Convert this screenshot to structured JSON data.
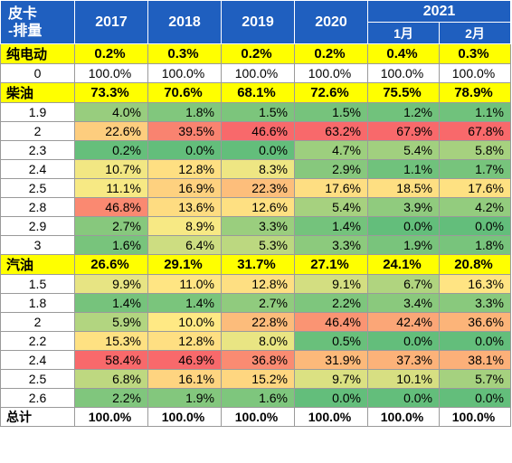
{
  "header": {
    "corner": "皮卡\n-排量",
    "years": [
      "2017",
      "2018",
      "2019",
      "2020"
    ],
    "year_2021": "2021",
    "months_2021": [
      "1月",
      "2月"
    ]
  },
  "colors": {
    "header_bg": "#1f5fbf",
    "group_bg": "#ffff00",
    "scale_low": "#63be7b",
    "scale_mid": "#ffeb84",
    "scale_high": "#f8696b"
  },
  "rows": [
    {
      "label": "纯电动",
      "type": "group",
      "values": [
        "0.2%",
        "0.3%",
        "0.2%",
        "0.2%",
        "0.4%",
        "0.3%"
      ]
    },
    {
      "label": "0",
      "type": "plain",
      "values": [
        "100.0%",
        "100.0%",
        "100.0%",
        "100.0%",
        "100.0%",
        "100.0%"
      ]
    },
    {
      "label": "柴油",
      "type": "group",
      "values": [
        "73.3%",
        "70.6%",
        "68.1%",
        "72.6%",
        "75.5%",
        "78.9%"
      ]
    },
    {
      "label": "1.9",
      "type": "data",
      "values": [
        "4.0%",
        "1.8%",
        "1.5%",
        "1.5%",
        "1.2%",
        "1.1%"
      ]
    },
    {
      "label": "2",
      "type": "data",
      "values": [
        "22.6%",
        "39.5%",
        "46.6%",
        "63.2%",
        "67.9%",
        "67.8%"
      ]
    },
    {
      "label": "2.3",
      "type": "data",
      "values": [
        "0.2%",
        "0.0%",
        "0.0%",
        "4.7%",
        "5.4%",
        "5.8%"
      ]
    },
    {
      "label": "2.4",
      "type": "data",
      "values": [
        "10.7%",
        "12.8%",
        "8.3%",
        "2.9%",
        "1.1%",
        "1.7%"
      ]
    },
    {
      "label": "2.5",
      "type": "data",
      "values": [
        "11.1%",
        "16.9%",
        "22.3%",
        "17.6%",
        "18.5%",
        "17.6%"
      ]
    },
    {
      "label": "2.8",
      "type": "data",
      "values": [
        "46.8%",
        "13.6%",
        "12.6%",
        "5.4%",
        "3.9%",
        "4.2%"
      ]
    },
    {
      "label": "2.9",
      "type": "data",
      "values": [
        "2.7%",
        "8.9%",
        "3.3%",
        "1.4%",
        "0.0%",
        "0.0%"
      ]
    },
    {
      "label": "3",
      "type": "data",
      "values": [
        "1.6%",
        "6.4%",
        "5.3%",
        "3.3%",
        "1.9%",
        "1.8%"
      ]
    },
    {
      "label": "汽油",
      "type": "group",
      "values": [
        "26.6%",
        "29.1%",
        "31.7%",
        "27.1%",
        "24.1%",
        "20.8%"
      ]
    },
    {
      "label": "1.5",
      "type": "data",
      "values": [
        "9.9%",
        "11.0%",
        "12.8%",
        "9.1%",
        "6.7%",
        "16.3%"
      ]
    },
    {
      "label": "1.8",
      "type": "data",
      "values": [
        "1.4%",
        "1.4%",
        "2.7%",
        "2.2%",
        "3.4%",
        "3.3%"
      ]
    },
    {
      "label": "2",
      "type": "data",
      "values": [
        "5.9%",
        "10.0%",
        "22.8%",
        "46.4%",
        "42.4%",
        "36.6%"
      ]
    },
    {
      "label": "2.2",
      "type": "data",
      "values": [
        "15.3%",
        "12.8%",
        "8.0%",
        "0.5%",
        "0.0%",
        "0.0%"
      ]
    },
    {
      "label": "2.4",
      "type": "data",
      "values": [
        "58.4%",
        "46.9%",
        "36.8%",
        "31.9%",
        "37.3%",
        "38.1%"
      ]
    },
    {
      "label": "2.5",
      "type": "data",
      "values": [
        "6.8%",
        "16.1%",
        "15.2%",
        "9.7%",
        "10.1%",
        "5.7%"
      ]
    },
    {
      "label": "2.6",
      "type": "data",
      "values": [
        "2.2%",
        "1.9%",
        "1.6%",
        "0.0%",
        "0.0%",
        "0.0%"
      ]
    },
    {
      "label": "总计",
      "type": "total",
      "values": [
        "100.0%",
        "100.0%",
        "100.0%",
        "100.0%",
        "100.0%",
        "100.0%"
      ]
    }
  ]
}
